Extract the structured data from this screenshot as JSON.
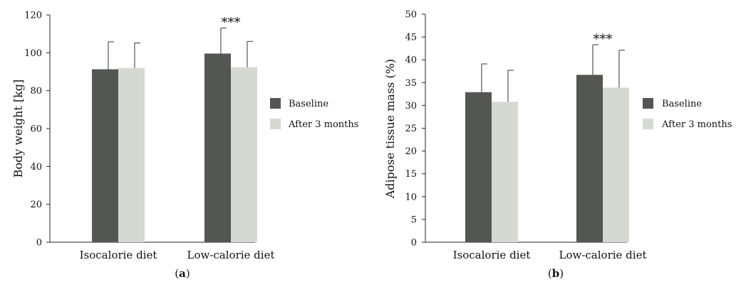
{
  "colors": {
    "baseline": "#545652",
    "after": "#d6d8d2",
    "axis": "#222222",
    "errorbar": "#333333"
  },
  "chart_data": [
    {
      "type": "bar",
      "panel_label": "(a)",
      "panel_letter": "a",
      "categories": [
        "Isocalorie diet",
        "Low-calorie diet"
      ],
      "series": [
        {
          "name": "Baseline",
          "values": [
            91.3,
            99.6
          ],
          "errors": [
            14.5,
            13.5
          ]
        },
        {
          "name": "After 3 months",
          "values": [
            92.0,
            92.4
          ],
          "errors": [
            13.2,
            13.6
          ]
        }
      ],
      "ylabel": "Body weight [kg]",
      "ylim": [
        0,
        120
      ],
      "yticks": [
        0,
        20,
        40,
        60,
        80,
        100,
        120
      ],
      "significance": {
        "category_index": 1,
        "label": "***"
      },
      "legend_position": "right"
    },
    {
      "type": "bar",
      "panel_label": "(b)",
      "panel_letter": "b",
      "categories": [
        "Isocalorie diet",
        "Low-calorie diet"
      ],
      "series": [
        {
          "name": "Baseline",
          "values": [
            32.9,
            36.7
          ],
          "errors": [
            6.2,
            6.6
          ]
        },
        {
          "name": "After 3 months",
          "values": [
            30.8,
            33.9
          ],
          "errors": [
            6.9,
            8.2
          ]
        }
      ],
      "ylabel": "Adipose tissue mass (%)",
      "ylim": [
        0,
        50
      ],
      "yticks": [
        0,
        5,
        10,
        15,
        20,
        25,
        30,
        35,
        40,
        45,
        50
      ],
      "significance": {
        "category_index": 1,
        "label": "***"
      },
      "legend_position": "right"
    }
  ]
}
